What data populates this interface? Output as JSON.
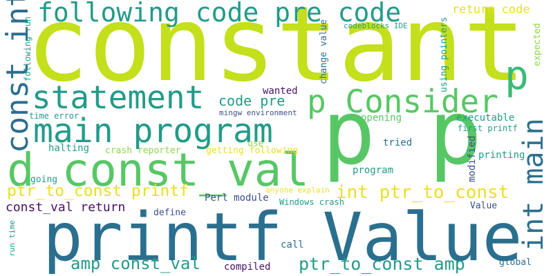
{
  "words": {
    "constant": "constant",
    "printf_value": "printf Value",
    "p_p": "p p",
    "d_const_val": "d const_val",
    "main_program": "main program",
    "statement": "statement",
    "p_consider": "p Consider",
    "following_code_pre_code": "following code pre code",
    "const_int": "const int",
    "int_main": "int main",
    "p": "p",
    "ptr_to_const_printf": "ptr_to_const printf",
    "int_ptr_to_const": "int ptr_to_const",
    "ptr_to_const_amp": "ptr_to_const amp",
    "amp_const_val": "amp const_val",
    "const_val_return": "const_val return",
    "code_pre": "code pre",
    "return_code": "return code",
    "codeblocks_ide": "codeblocks IDE",
    "expected": "expected",
    "using_pointers": "using pointers",
    "change_value": "change value",
    "following_run": "following run",
    "wanted": "wanted",
    "mingw_environment": "mingw environment",
    "time_error": "time error",
    "opening": "opening",
    "executable": "executable",
    "first_printf": "first printf",
    "halting": "halting",
    "crash_reporter": "crash reporter",
    "getting_following": "getting following",
    "use": "use",
    "tried": "tried",
    "modified": "modified",
    "printing": "printing",
    "going": "going",
    "program": "program",
    "anyone_explain": "anyone explain",
    "perl_module": "Perl module",
    "windows_crash": "Windows crash",
    "value": "Value",
    "define": "define",
    "run_time": "run time",
    "call": "call",
    "compiled": "compiled",
    "global": "global"
  },
  "colors": {
    "lime": "#c4df1b",
    "green": "#57c765",
    "teal": "#229b89",
    "blue": "#2b6f8f",
    "indigo": "#3b4f8c",
    "purple": "#471064",
    "yellow": "#eadf26",
    "lightgreen": "#8dd44e",
    "seafoam": "#3bba76"
  }
}
